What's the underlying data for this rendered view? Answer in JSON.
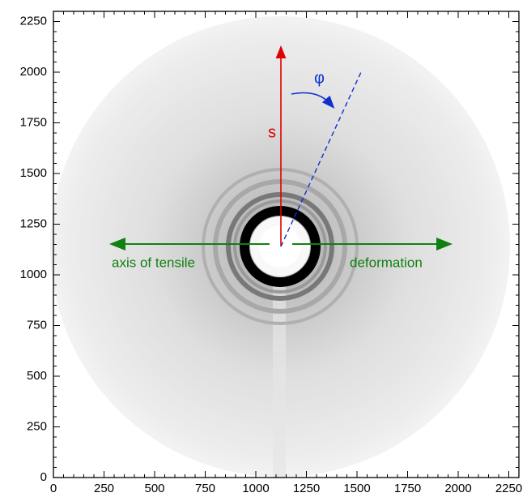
{
  "chart_data": {
    "type": "image",
    "xlim": [
      0,
      2300
    ],
    "ylim": [
      0,
      2300
    ],
    "xticks": [
      0,
      250,
      500,
      750,
      1000,
      1250,
      1500,
      1750,
      2000,
      2250
    ],
    "yticks": [
      0,
      250,
      500,
      750,
      1000,
      1250,
      1500,
      1750,
      2000,
      2250
    ],
    "annotations": {
      "s": "s",
      "phi": "φ",
      "left": "axis of tensile",
      "right": "deformation"
    }
  }
}
